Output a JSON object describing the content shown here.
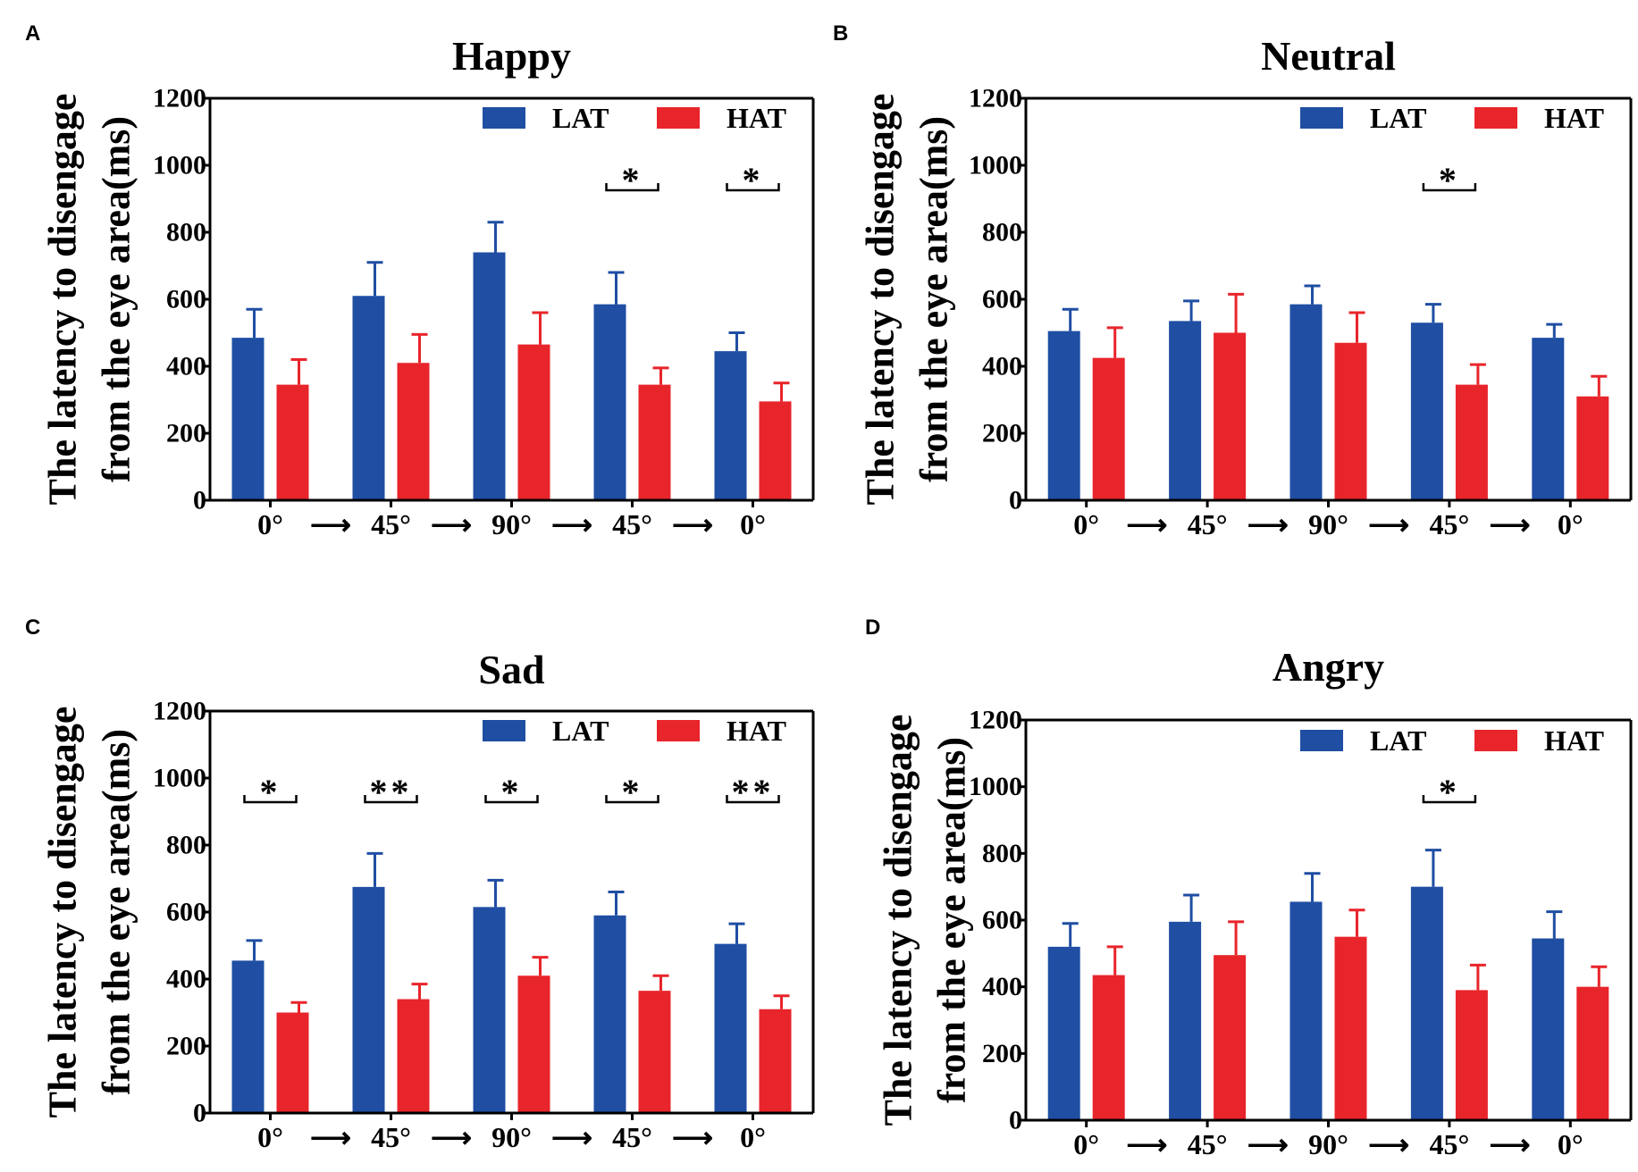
{
  "colors": {
    "lat": "#1f4ea3",
    "hat": "#e8252b",
    "axis": "#000000"
  },
  "chart_data": [
    {
      "panel": "A",
      "type": "bar",
      "title": "Happy",
      "ylabel_lines": [
        "The latency to disengage",
        "from the eye area(ms)"
      ],
      "xlabel": "",
      "ylim": [
        0,
        1200
      ],
      "yticks": [
        "0",
        "200",
        "400",
        "600",
        "800",
        "1000",
        "1200"
      ],
      "categories": [
        "0°",
        "45°",
        "90°",
        "45°",
        "0°"
      ],
      "arrow": "⟶",
      "legend": [
        "LAT",
        "HAT"
      ],
      "series": [
        {
          "name": "LAT",
          "values": [
            485,
            610,
            740,
            585,
            445
          ],
          "errors": [
            85,
            100,
            90,
            95,
            55
          ]
        },
        {
          "name": "HAT",
          "values": [
            345,
            410,
            465,
            345,
            295
          ],
          "errors": [
            75,
            85,
            95,
            50,
            55
          ]
        }
      ],
      "significance": [
        {
          "category_index": 3,
          "label": "*"
        },
        {
          "category_index": 4,
          "label": "*"
        }
      ]
    },
    {
      "panel": "B",
      "type": "bar",
      "title": "Neutral",
      "ylabel_lines": [
        "The latency to disengage",
        "from the eye area(ms)"
      ],
      "xlabel": "",
      "ylim": [
        0,
        1200
      ],
      "yticks": [
        "0",
        "200",
        "400",
        "600",
        "800",
        "1000",
        "1200"
      ],
      "categories": [
        "0°",
        "45°",
        "90°",
        "45°",
        "0°"
      ],
      "arrow": "⟶",
      "legend": [
        "LAT",
        "HAT"
      ],
      "series": [
        {
          "name": "LAT",
          "values": [
            505,
            535,
            585,
            530,
            485
          ],
          "errors": [
            65,
            60,
            55,
            55,
            40
          ]
        },
        {
          "name": "HAT",
          "values": [
            425,
            500,
            470,
            345,
            310
          ],
          "errors": [
            90,
            115,
            90,
            60,
            60
          ]
        }
      ],
      "significance": [
        {
          "category_index": 3,
          "label": "*"
        }
      ]
    },
    {
      "panel": "C",
      "type": "bar",
      "title": "Sad",
      "ylabel_lines": [
        "The latency to disengage",
        "from the eye area(ms)"
      ],
      "xlabel": "",
      "ylim": [
        0,
        1200
      ],
      "yticks": [
        "0",
        "200",
        "400",
        "600",
        "800",
        "1000",
        "1200"
      ],
      "categories": [
        "0°",
        "45°",
        "90°",
        "45°",
        "0°"
      ],
      "arrow": "⟶",
      "legend": [
        "LAT",
        "HAT"
      ],
      "series": [
        {
          "name": "LAT",
          "values": [
            455,
            675,
            615,
            590,
            505
          ],
          "errors": [
            60,
            100,
            80,
            70,
            60
          ]
        },
        {
          "name": "HAT",
          "values": [
            300,
            340,
            410,
            365,
            310
          ],
          "errors": [
            30,
            45,
            55,
            45,
            40
          ]
        }
      ],
      "significance": [
        {
          "category_index": 0,
          "label": "*"
        },
        {
          "category_index": 1,
          "label": "**"
        },
        {
          "category_index": 2,
          "label": "*"
        },
        {
          "category_index": 3,
          "label": "*"
        },
        {
          "category_index": 4,
          "label": "**"
        }
      ]
    },
    {
      "panel": "D",
      "type": "bar",
      "title": "Angry",
      "ylabel_lines": [
        "The latency to disengage",
        "from the eye area(ms)"
      ],
      "xlabel": "",
      "ylim": [
        0,
        1200
      ],
      "yticks": [
        "0",
        "200",
        "400",
        "600",
        "800",
        "1000",
        "1200"
      ],
      "categories": [
        "0°",
        "45°",
        "90°",
        "45°",
        "0°"
      ],
      "arrow": "⟶",
      "legend": [
        "LAT",
        "HAT"
      ],
      "series": [
        {
          "name": "LAT",
          "values": [
            520,
            595,
            655,
            700,
            545
          ],
          "errors": [
            70,
            80,
            85,
            110,
            80
          ]
        },
        {
          "name": "HAT",
          "values": [
            435,
            495,
            550,
            390,
            400
          ],
          "errors": [
            85,
            100,
            80,
            75,
            60
          ]
        }
      ],
      "significance": [
        {
          "category_index": 3,
          "label": "*"
        }
      ]
    }
  ]
}
